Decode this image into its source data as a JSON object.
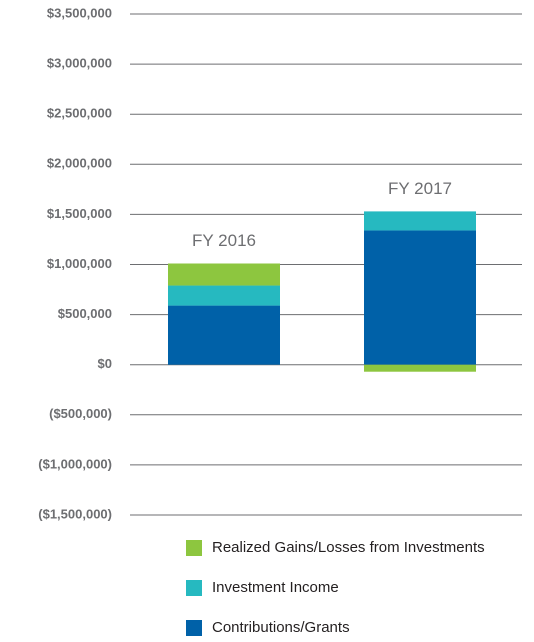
{
  "chart_data": {
    "type": "stacked-bar",
    "categories": [
      "FY 2016",
      "FY 2017"
    ],
    "series": [
      {
        "name": "Contributions/Grants",
        "color": "#0061a8",
        "values": [
          590000,
          1340000
        ]
      },
      {
        "name": "Investment Income",
        "color": "#26b9c0",
        "values": [
          200000,
          190000
        ]
      },
      {
        "name": "Realized Gains/Losses from Investments",
        "color": "#8dc63f",
        "values": [
          220000,
          -70000
        ]
      }
    ],
    "ylim": [
      -1500000,
      3500000
    ],
    "yticks": [
      {
        "value": 3500000,
        "label": "$3,500,000"
      },
      {
        "value": 3000000,
        "label": "$3,000,000"
      },
      {
        "value": 2500000,
        "label": "$2,500,000"
      },
      {
        "value": 2000000,
        "label": "$2,000,000"
      },
      {
        "value": 1500000,
        "label": "$1,500,000"
      },
      {
        "value": 1000000,
        "label": "$1,000,000"
      },
      {
        "value": 500000,
        "label": "$500,000"
      },
      {
        "value": 0,
        "label": "$0"
      },
      {
        "value": -500000,
        "label": "($500,000)"
      },
      {
        "value": -1000000,
        "label": "($1,000,000)"
      },
      {
        "value": -1500000,
        "label": "($1,500,000)"
      }
    ],
    "grid": true
  }
}
